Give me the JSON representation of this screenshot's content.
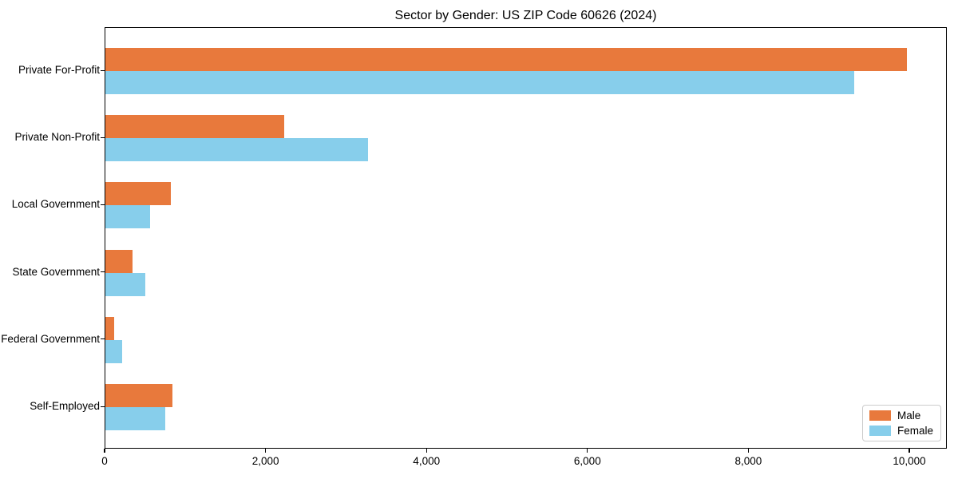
{
  "chart_data": {
    "type": "bar",
    "orientation": "horizontal",
    "title": "Sector by Gender: US ZIP Code 60626 (2024)",
    "xlabel": "",
    "ylabel": "",
    "categories": [
      "Private For-Profit",
      "Private Non-Profit",
      "Local Government",
      "State Government",
      "Federal Government",
      "Self-Employed"
    ],
    "series": [
      {
        "name": "Male",
        "color": "#E8793C",
        "values": [
          9960,
          2225,
          815,
          340,
          110,
          835
        ]
      },
      {
        "name": "Female",
        "color": "#87CEEB",
        "values": [
          9305,
          3265,
          555,
          500,
          210,
          745
        ]
      }
    ],
    "xlim": [
      0,
      10466
    ],
    "x_ticks": [
      {
        "value": 0,
        "label": "0"
      },
      {
        "value": 2000,
        "label": "2,000"
      },
      {
        "value": 4000,
        "label": "4,000"
      },
      {
        "value": 6000,
        "label": "6,000"
      },
      {
        "value": 8000,
        "label": "8,000"
      },
      {
        "value": 10000,
        "label": "10,000"
      }
    ],
    "grid": false,
    "legend_position": "lower right",
    "axis_color": "#000000",
    "background_color": "#ffffff"
  }
}
